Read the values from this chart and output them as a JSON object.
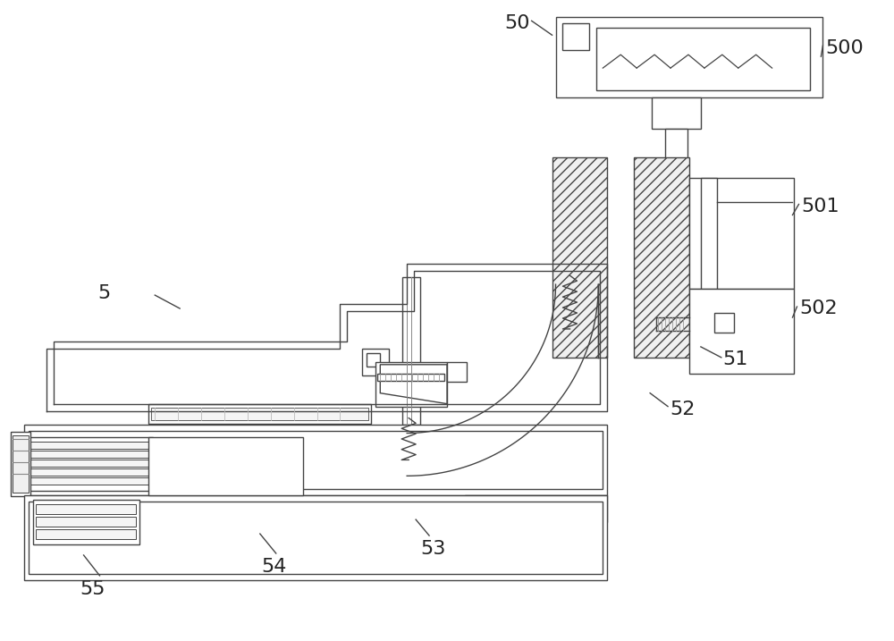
{
  "bg_color": "#ffffff",
  "lc": "#444444",
  "lw": 1.0,
  "fig_width": 10.0,
  "fig_height": 7.17,
  "dpi": 100,
  "label_fontsize": 16,
  "label_color": "#222222"
}
